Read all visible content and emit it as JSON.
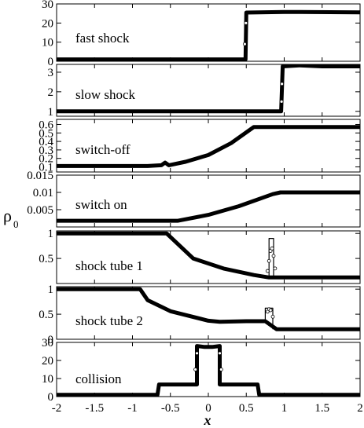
{
  "figure": {
    "ylabel": "ρ",
    "ylabel_subscript": "0",
    "xlabel": "x"
  },
  "chart_data": [
    {
      "type": "line",
      "label": "fast shock",
      "ylim": [
        0,
        30
      ],
      "yticks": [
        0,
        10,
        20,
        30
      ],
      "ytick_labels": [
        "0",
        "10",
        "20",
        "30"
      ],
      "series": [
        {
          "style": "thick-line",
          "x": [
            -2,
            0.49,
            0.5,
            1.0,
            2.0
          ],
          "y": [
            1,
            1,
            25.5,
            25.8,
            25.6
          ]
        },
        {
          "style": "open-circles",
          "x": [
            0.48,
            0.495
          ],
          "y": [
            9,
            20
          ]
        }
      ]
    },
    {
      "type": "line",
      "label": "slow shock",
      "ylim": [
        0.75,
        3.4
      ],
      "yticks": [
        1,
        2,
        3
      ],
      "ytick_labels": [
        "1",
        "2",
        "3"
      ],
      "series": [
        {
          "style": "thick-line",
          "x": [
            -2,
            0.96,
            0.98,
            1.2,
            1.5,
            2.0
          ],
          "y": [
            1,
            1,
            3.3,
            3.35,
            3.3,
            3.3
          ]
        },
        {
          "style": "open-circles",
          "x": [
            0.965,
            0.97
          ],
          "y": [
            1.5,
            2.4
          ]
        }
      ]
    },
    {
      "type": "line",
      "label": "switch-off",
      "ylim": [
        0.04,
        0.66
      ],
      "yticks": [
        0.1,
        0.2,
        0.3,
        0.4,
        0.5,
        0.6
      ],
      "ytick_labels": [
        "0.1",
        "0.2",
        "0.3",
        "0.4",
        "0.5",
        "0.6"
      ],
      "series": [
        {
          "style": "thick-line",
          "x": [
            -2,
            -0.8,
            -0.62,
            -0.57,
            -0.52,
            -0.3,
            0,
            0.3,
            0.6,
            2.0
          ],
          "y": [
            0.11,
            0.11,
            0.12,
            0.15,
            0.12,
            0.16,
            0.24,
            0.38,
            0.57,
            0.57
          ]
        }
      ]
    },
    {
      "type": "line",
      "label": "switch on",
      "ylim": [
        0,
        0.015
      ],
      "yticks": [
        0.005,
        0.01,
        0.015
      ],
      "ytick_labels": [
        "0.005",
        "0.01",
        "0.015"
      ],
      "series": [
        {
          "style": "thick-line",
          "x": [
            -2,
            -0.4,
            0,
            0.4,
            0.85,
            0.95,
            2.0
          ],
          "y": [
            0.0018,
            0.0018,
            0.0035,
            0.006,
            0.0095,
            0.01,
            0.01
          ]
        }
      ]
    },
    {
      "type": "line",
      "label": "shock tube 1",
      "ylim": [
        0,
        1.05
      ],
      "yticks": [
        0.5,
        1
      ],
      "ytick_labels": [
        "0.5",
        "1"
      ],
      "series": [
        {
          "style": "thick-line",
          "x": [
            -2,
            -0.55,
            -0.2,
            0.2,
            0.6,
            0.8,
            2.0
          ],
          "y": [
            1,
            1,
            0.5,
            0.3,
            0.17,
            0.12,
            0.12
          ]
        },
        {
          "style": "thin-line",
          "x": [
            0.8,
            0.8,
            0.86,
            0.86,
            2.0
          ],
          "y": [
            0.12,
            0.9,
            0.9,
            0.12,
            0.12
          ]
        },
        {
          "style": "open-circles",
          "x": [
            0.78,
            0.8,
            0.82,
            0.84,
            0.86,
            0.88
          ],
          "y": [
            0.25,
            0.45,
            0.65,
            0.7,
            0.55,
            0.3
          ]
        }
      ]
    },
    {
      "type": "line",
      "label": "shock tube 2",
      "ylim": [
        0,
        1.05
      ],
      "yticks": [
        0,
        0.5,
        1
      ],
      "ytick_labels": [
        "0",
        "0.5",
        "1"
      ],
      "series": [
        {
          "style": "thick-line",
          "x": [
            -2,
            -0.9,
            -0.8,
            -0.5,
            0,
            0.15,
            0.5,
            0.75,
            0.9,
            2.0
          ],
          "y": [
            1,
            1,
            0.78,
            0.56,
            0.37,
            0.35,
            0.36,
            0.36,
            0.2,
            0.2
          ]
        },
        {
          "style": "thin-line",
          "x": [
            0.75,
            0.75,
            0.85,
            0.85
          ],
          "y": [
            0.36,
            0.62,
            0.62,
            0.2
          ]
        },
        {
          "style": "open-circles",
          "x": [
            0.78,
            0.8,
            0.82,
            0.85
          ],
          "y": [
            0.55,
            0.6,
            0.58,
            0.45
          ]
        }
      ]
    },
    {
      "type": "line",
      "label": "collision",
      "ylim": [
        0,
        30
      ],
      "yticks": [
        0,
        10,
        20,
        30
      ],
      "ytick_labels": [
        "0",
        "10",
        "20",
        "30"
      ],
      "series": [
        {
          "style": "thick-line",
          "x": [
            -2,
            -0.67,
            -0.65,
            -0.15,
            -0.15,
            -0.05,
            0.05,
            0.15,
            0.15,
            0.65,
            0.67,
            2.0
          ],
          "y": [
            1,
            1,
            6.7,
            6.7,
            28,
            27.5,
            27.5,
            28,
            6.7,
            6.7,
            1,
            1
          ]
        },
        {
          "style": "thin-line",
          "x": [
            -0.65,
            -0.15,
            -0.15,
            0.15,
            0.15,
            0.65
          ],
          "y": [
            6.7,
            6.7,
            27.5,
            27.5,
            6.7,
            6.7
          ]
        },
        {
          "style": "open-circles",
          "x": [
            -0.17,
            -0.15,
            0.15,
            0.17
          ],
          "y": [
            15,
            24,
            24,
            15
          ]
        }
      ]
    }
  ],
  "x_axis": {
    "xlim": [
      -2,
      2
    ],
    "xticks": [
      -2,
      -1.5,
      -1,
      -0.5,
      0,
      0.5,
      1,
      1.5,
      2
    ],
    "xtick_labels": [
      "-2",
      "-1.5",
      "-1",
      "-0.5",
      "0",
      "0.5",
      "1",
      "1.5",
      "2"
    ]
  }
}
